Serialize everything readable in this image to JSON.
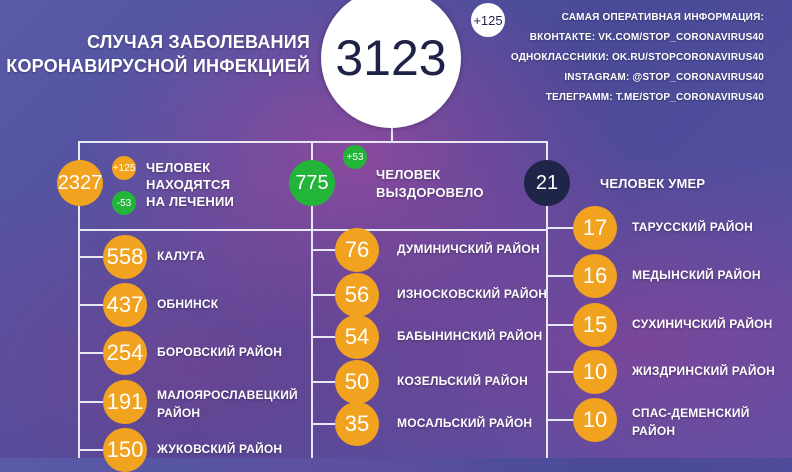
{
  "header": {
    "title_line1": "Случая заболевания",
    "title_line2": "коронавирусной инфекцией",
    "total": "3123",
    "total_delta": "+125"
  },
  "info": [
    "Самая оперативная информация:",
    "ВКонтакте: vk.com/stop_coronavirus40",
    "Одноклассники: ok.ru/stopcoronavirus40",
    "Instagram: @stop_coronavirus40",
    "Телеграмм: t.me/stop_coronavirus40"
  ],
  "treatment": {
    "value": "2327",
    "plus": "+125",
    "minus": "-53",
    "label_lines": [
      "человек",
      "находятся",
      "на лечении"
    ]
  },
  "recovered": {
    "value": "775",
    "plus": "+53",
    "label_lines": [
      "человек",
      "выздоровело"
    ]
  },
  "died": {
    "value": "21",
    "label": "человек умер"
  },
  "colors": {
    "orange": "#f1a21e",
    "green": "#23b53a",
    "navy": "#1f2548"
  },
  "districts_left": [
    {
      "value": "558",
      "name": "Калуга"
    },
    {
      "value": "437",
      "name": "Обнинск"
    },
    {
      "value": "254",
      "name": "Боровский район"
    },
    {
      "value": "191",
      "name": "Малоярославецкий район"
    },
    {
      "value": "150",
      "name": "Жуковский район"
    }
  ],
  "districts_middle": [
    {
      "value": "76",
      "name": "Думиничский район"
    },
    {
      "value": "56",
      "name": "Износковский район"
    },
    {
      "value": "54",
      "name": "Бабынинский район"
    },
    {
      "value": "50",
      "name": "Козельский район"
    },
    {
      "value": "35",
      "name": "Мосальский район"
    }
  ],
  "districts_right": [
    {
      "value": "17",
      "name": "Тарусский район"
    },
    {
      "value": "16",
      "name": "Медынский район"
    },
    {
      "value": "15",
      "name": "Сухиничский район"
    },
    {
      "value": "10",
      "name": "Жиздринский район"
    },
    {
      "value": "10",
      "name": "Спас-Деменский район"
    }
  ]
}
